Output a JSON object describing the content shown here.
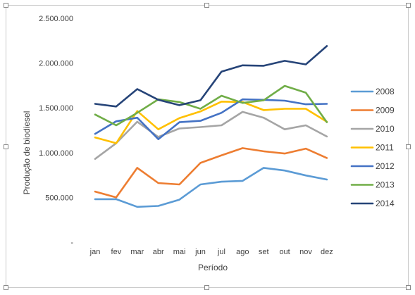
{
  "chart_data": {
    "type": "line",
    "title": "",
    "xlabel": "Período",
    "ylabel": "Produção de biodiesel",
    "categories": [
      "jan",
      "fev",
      "mar",
      "abr",
      "mai",
      "jun",
      "jul",
      "ago",
      "set",
      "out",
      "nov",
      "dez"
    ],
    "y_ticks": [
      0,
      500000,
      1000000,
      1500000,
      2000000,
      2500000
    ],
    "y_tick_labels": [
      "-",
      "500.000",
      "1.000.000",
      "1.500.000",
      "2.000.000",
      "2.500.000"
    ],
    "ylim": [
      0,
      2500000
    ],
    "grid": false,
    "legend_position": "right",
    "series": [
      {
        "name": "2008",
        "color": "#5B9BD5",
        "values": [
          480000,
          480000,
          395000,
          405000,
          475000,
          645000,
          675000,
          685000,
          830000,
          800000,
          745000,
          700000
        ]
      },
      {
        "name": "2009",
        "color": "#ED7D31",
        "values": [
          565000,
          500000,
          830000,
          660000,
          645000,
          885000,
          970000,
          1050000,
          1015000,
          990000,
          1045000,
          940000
        ]
      },
      {
        "name": "2010",
        "color": "#A5A5A5",
        "values": [
          930000,
          1105000,
          1345000,
          1175000,
          1270000,
          1285000,
          1305000,
          1455000,
          1390000,
          1260000,
          1305000,
          1180000
        ]
      },
      {
        "name": "2011",
        "color": "#FFC000",
        "values": [
          1170000,
          1105000,
          1465000,
          1260000,
          1385000,
          1460000,
          1570000,
          1565000,
          1475000,
          1490000,
          1490000,
          1345000
        ]
      },
      {
        "name": "2012",
        "color": "#4472C4",
        "values": [
          1210000,
          1350000,
          1390000,
          1150000,
          1340000,
          1355000,
          1445000,
          1595000,
          1590000,
          1580000,
          1540000,
          1545000
        ]
      },
      {
        "name": "2013",
        "color": "#70AD47",
        "values": [
          1425000,
          1305000,
          1445000,
          1595000,
          1565000,
          1490000,
          1635000,
          1555000,
          1585000,
          1745000,
          1670000,
          1340000
        ]
      },
      {
        "name": "2014",
        "color": "#264478",
        "values": [
          1545000,
          1515000,
          1710000,
          1590000,
          1530000,
          1585000,
          1905000,
          1975000,
          1970000,
          2025000,
          1985000,
          2190000
        ]
      }
    ]
  }
}
